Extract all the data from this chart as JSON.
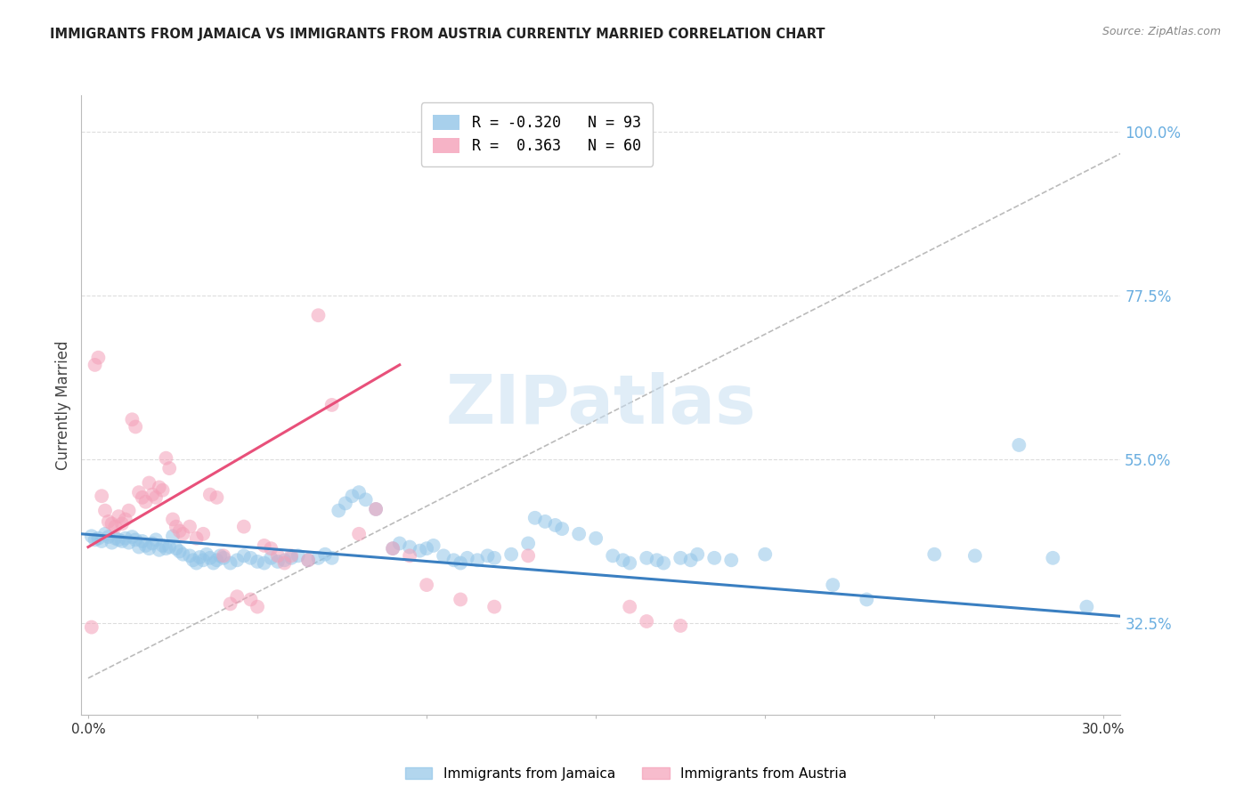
{
  "title": "IMMIGRANTS FROM JAMAICA VS IMMIGRANTS FROM AUSTRIA CURRENTLY MARRIED CORRELATION CHART",
  "source": "Source: ZipAtlas.com",
  "ylabel": "Currently Married",
  "ytick_labels": [
    "100.0%",
    "77.5%",
    "55.0%",
    "32.5%"
  ],
  "ytick_values": [
    1.0,
    0.775,
    0.55,
    0.325
  ],
  "ymin": 0.2,
  "ymax": 1.05,
  "xmin": -0.002,
  "xmax": 0.305,
  "watermark_text": "ZIPatlas",
  "jamaica_color": "#92C5E8",
  "austria_color": "#F4A0B8",
  "jamaica_line_color": "#3A7FC1",
  "austria_line_color": "#E8507A",
  "dashed_line_color": "#BBBBBB",
  "grid_color": "#DDDDDD",
  "title_color": "#222222",
  "ytick_color": "#6AAEE0",
  "xtick_color": "#333333",
  "background_color": "#FFFFFF",
  "jamaica_scatter": [
    [
      0.001,
      0.445
    ],
    [
      0.002,
      0.44
    ],
    [
      0.003,
      0.442
    ],
    [
      0.004,
      0.438
    ],
    [
      0.005,
      0.448
    ],
    [
      0.006,
      0.444
    ],
    [
      0.007,
      0.436
    ],
    [
      0.008,
      0.442
    ],
    [
      0.009,
      0.44
    ],
    [
      0.01,
      0.438
    ],
    [
      0.011,
      0.442
    ],
    [
      0.012,
      0.436
    ],
    [
      0.013,
      0.444
    ],
    [
      0.014,
      0.44
    ],
    [
      0.015,
      0.43
    ],
    [
      0.016,
      0.438
    ],
    [
      0.017,
      0.432
    ],
    [
      0.018,
      0.428
    ],
    [
      0.019,
      0.435
    ],
    [
      0.02,
      0.44
    ],
    [
      0.021,
      0.426
    ],
    [
      0.022,
      0.432
    ],
    [
      0.023,
      0.428
    ],
    [
      0.024,
      0.43
    ],
    [
      0.025,
      0.445
    ],
    [
      0.026,
      0.428
    ],
    [
      0.027,
      0.424
    ],
    [
      0.028,
      0.42
    ],
    [
      0.03,
      0.418
    ],
    [
      0.031,
      0.412
    ],
    [
      0.032,
      0.408
    ],
    [
      0.033,
      0.416
    ],
    [
      0.034,
      0.412
    ],
    [
      0.035,
      0.42
    ],
    [
      0.036,
      0.415
    ],
    [
      0.037,
      0.408
    ],
    [
      0.038,
      0.412
    ],
    [
      0.039,
      0.418
    ],
    [
      0.04,
      0.415
    ],
    [
      0.042,
      0.408
    ],
    [
      0.044,
      0.412
    ],
    [
      0.046,
      0.418
    ],
    [
      0.048,
      0.415
    ],
    [
      0.05,
      0.41
    ],
    [
      0.052,
      0.408
    ],
    [
      0.054,
      0.415
    ],
    [
      0.056,
      0.41
    ],
    [
      0.058,
      0.412
    ],
    [
      0.06,
      0.415
    ],
    [
      0.062,
      0.418
    ],
    [
      0.065,
      0.412
    ],
    [
      0.068,
      0.415
    ],
    [
      0.07,
      0.42
    ],
    [
      0.072,
      0.415
    ],
    [
      0.074,
      0.48
    ],
    [
      0.076,
      0.49
    ],
    [
      0.078,
      0.5
    ],
    [
      0.08,
      0.505
    ],
    [
      0.082,
      0.495
    ],
    [
      0.085,
      0.482
    ],
    [
      0.09,
      0.428
    ],
    [
      0.092,
      0.435
    ],
    [
      0.095,
      0.43
    ],
    [
      0.098,
      0.425
    ],
    [
      0.1,
      0.428
    ],
    [
      0.102,
      0.432
    ],
    [
      0.105,
      0.418
    ],
    [
      0.108,
      0.412
    ],
    [
      0.11,
      0.408
    ],
    [
      0.112,
      0.415
    ],
    [
      0.115,
      0.412
    ],
    [
      0.118,
      0.418
    ],
    [
      0.12,
      0.415
    ],
    [
      0.125,
      0.42
    ],
    [
      0.13,
      0.435
    ],
    [
      0.132,
      0.47
    ],
    [
      0.135,
      0.465
    ],
    [
      0.138,
      0.46
    ],
    [
      0.14,
      0.455
    ],
    [
      0.145,
      0.448
    ],
    [
      0.15,
      0.442
    ],
    [
      0.155,
      0.418
    ],
    [
      0.158,
      0.412
    ],
    [
      0.16,
      0.408
    ],
    [
      0.165,
      0.415
    ],
    [
      0.168,
      0.412
    ],
    [
      0.17,
      0.408
    ],
    [
      0.175,
      0.415
    ],
    [
      0.178,
      0.412
    ],
    [
      0.18,
      0.42
    ],
    [
      0.185,
      0.415
    ],
    [
      0.19,
      0.412
    ],
    [
      0.2,
      0.42
    ],
    [
      0.22,
      0.378
    ],
    [
      0.23,
      0.358
    ],
    [
      0.25,
      0.42
    ],
    [
      0.262,
      0.418
    ],
    [
      0.275,
      0.57
    ],
    [
      0.285,
      0.415
    ],
    [
      0.295,
      0.348
    ]
  ],
  "austria_scatter": [
    [
      0.001,
      0.32
    ],
    [
      0.002,
      0.68
    ],
    [
      0.003,
      0.69
    ],
    [
      0.004,
      0.5
    ],
    [
      0.005,
      0.48
    ],
    [
      0.006,
      0.465
    ],
    [
      0.007,
      0.462
    ],
    [
      0.008,
      0.458
    ],
    [
      0.009,
      0.472
    ],
    [
      0.01,
      0.462
    ],
    [
      0.011,
      0.468
    ],
    [
      0.012,
      0.48
    ],
    [
      0.013,
      0.605
    ],
    [
      0.014,
      0.595
    ],
    [
      0.015,
      0.505
    ],
    [
      0.016,
      0.498
    ],
    [
      0.017,
      0.492
    ],
    [
      0.018,
      0.518
    ],
    [
      0.019,
      0.502
    ],
    [
      0.02,
      0.498
    ],
    [
      0.021,
      0.512
    ],
    [
      0.022,
      0.508
    ],
    [
      0.023,
      0.552
    ],
    [
      0.024,
      0.538
    ],
    [
      0.025,
      0.468
    ],
    [
      0.026,
      0.458
    ],
    [
      0.027,
      0.452
    ],
    [
      0.028,
      0.448
    ],
    [
      0.03,
      0.458
    ],
    [
      0.032,
      0.442
    ],
    [
      0.034,
      0.448
    ],
    [
      0.036,
      0.502
    ],
    [
      0.038,
      0.498
    ],
    [
      0.04,
      0.418
    ],
    [
      0.042,
      0.352
    ],
    [
      0.044,
      0.362
    ],
    [
      0.046,
      0.458
    ],
    [
      0.048,
      0.358
    ],
    [
      0.05,
      0.348
    ],
    [
      0.052,
      0.432
    ],
    [
      0.054,
      0.428
    ],
    [
      0.056,
      0.418
    ],
    [
      0.058,
      0.408
    ],
    [
      0.06,
      0.418
    ],
    [
      0.065,
      0.412
    ],
    [
      0.068,
      0.748
    ],
    [
      0.072,
      0.625
    ],
    [
      0.08,
      0.448
    ],
    [
      0.085,
      0.482
    ],
    [
      0.09,
      0.428
    ],
    [
      0.095,
      0.418
    ],
    [
      0.1,
      0.378
    ],
    [
      0.11,
      0.358
    ],
    [
      0.12,
      0.348
    ],
    [
      0.13,
      0.418
    ],
    [
      0.16,
      0.348
    ],
    [
      0.165,
      0.328
    ],
    [
      0.175,
      0.322
    ]
  ],
  "legend_R_jamaica": "R = -0.320",
  "legend_N_jamaica": "N = 93",
  "legend_R_austria": "R =  0.363",
  "legend_N_austria": "N = 60"
}
